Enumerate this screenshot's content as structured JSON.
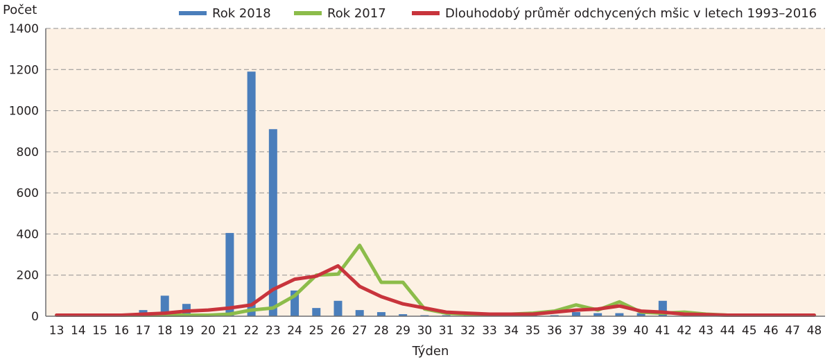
{
  "chart_data": {
    "type": "bar+line",
    "title": "",
    "xlabel": "Týden",
    "ylabel": "Počet",
    "ylim": [
      0,
      1400
    ],
    "yticks": [
      0,
      200,
      400,
      600,
      800,
      1000,
      1200,
      1400
    ],
    "grid": "horizontal-dashed",
    "legend_position": "top",
    "background_color": "#fdf1e4",
    "categories": [
      "13",
      "14",
      "15",
      "16",
      "17",
      "18",
      "19",
      "20",
      "21",
      "22",
      "23",
      "24",
      "25",
      "26",
      "27",
      "28",
      "29",
      "30",
      "31",
      "32",
      "33",
      "34",
      "35",
      "36",
      "37",
      "38",
      "39",
      "40",
      "41",
      "42",
      "43",
      "44",
      "45",
      "46",
      "47",
      "48"
    ],
    "series": [
      {
        "name": "Rok 2018",
        "kind": "bar",
        "color": "#4a7ebb",
        "values": [
          0,
          0,
          0,
          0,
          30,
          100,
          60,
          10,
          405,
          1190,
          910,
          125,
          40,
          75,
          30,
          20,
          10,
          5,
          5,
          5,
          5,
          5,
          5,
          5,
          20,
          15,
          15,
          15,
          75,
          0,
          0,
          0,
          0,
          0,
          0,
          0
        ]
      },
      {
        "name": "Rok 2017",
        "kind": "line",
        "color": "#8cbc4a",
        "values": [
          5,
          5,
          5,
          5,
          5,
          5,
          5,
          5,
          10,
          30,
          40,
          100,
          200,
          205,
          345,
          165,
          165,
          35,
          15,
          10,
          10,
          10,
          15,
          25,
          55,
          30,
          70,
          20,
          15,
          20,
          10,
          5,
          5,
          5,
          5,
          5
        ]
      },
      {
        "name": "Dlouhodobý průměr odchycených mšic v letech 1993–2016",
        "kind": "line",
        "color": "#c8343c",
        "values": [
          5,
          5,
          5,
          5,
          10,
          15,
          25,
          30,
          40,
          55,
          130,
          180,
          195,
          245,
          145,
          95,
          60,
          40,
          20,
          15,
          10,
          10,
          10,
          20,
          30,
          35,
          50,
          25,
          20,
          10,
          8,
          5,
          5,
          5,
          5,
          5
        ]
      }
    ]
  }
}
